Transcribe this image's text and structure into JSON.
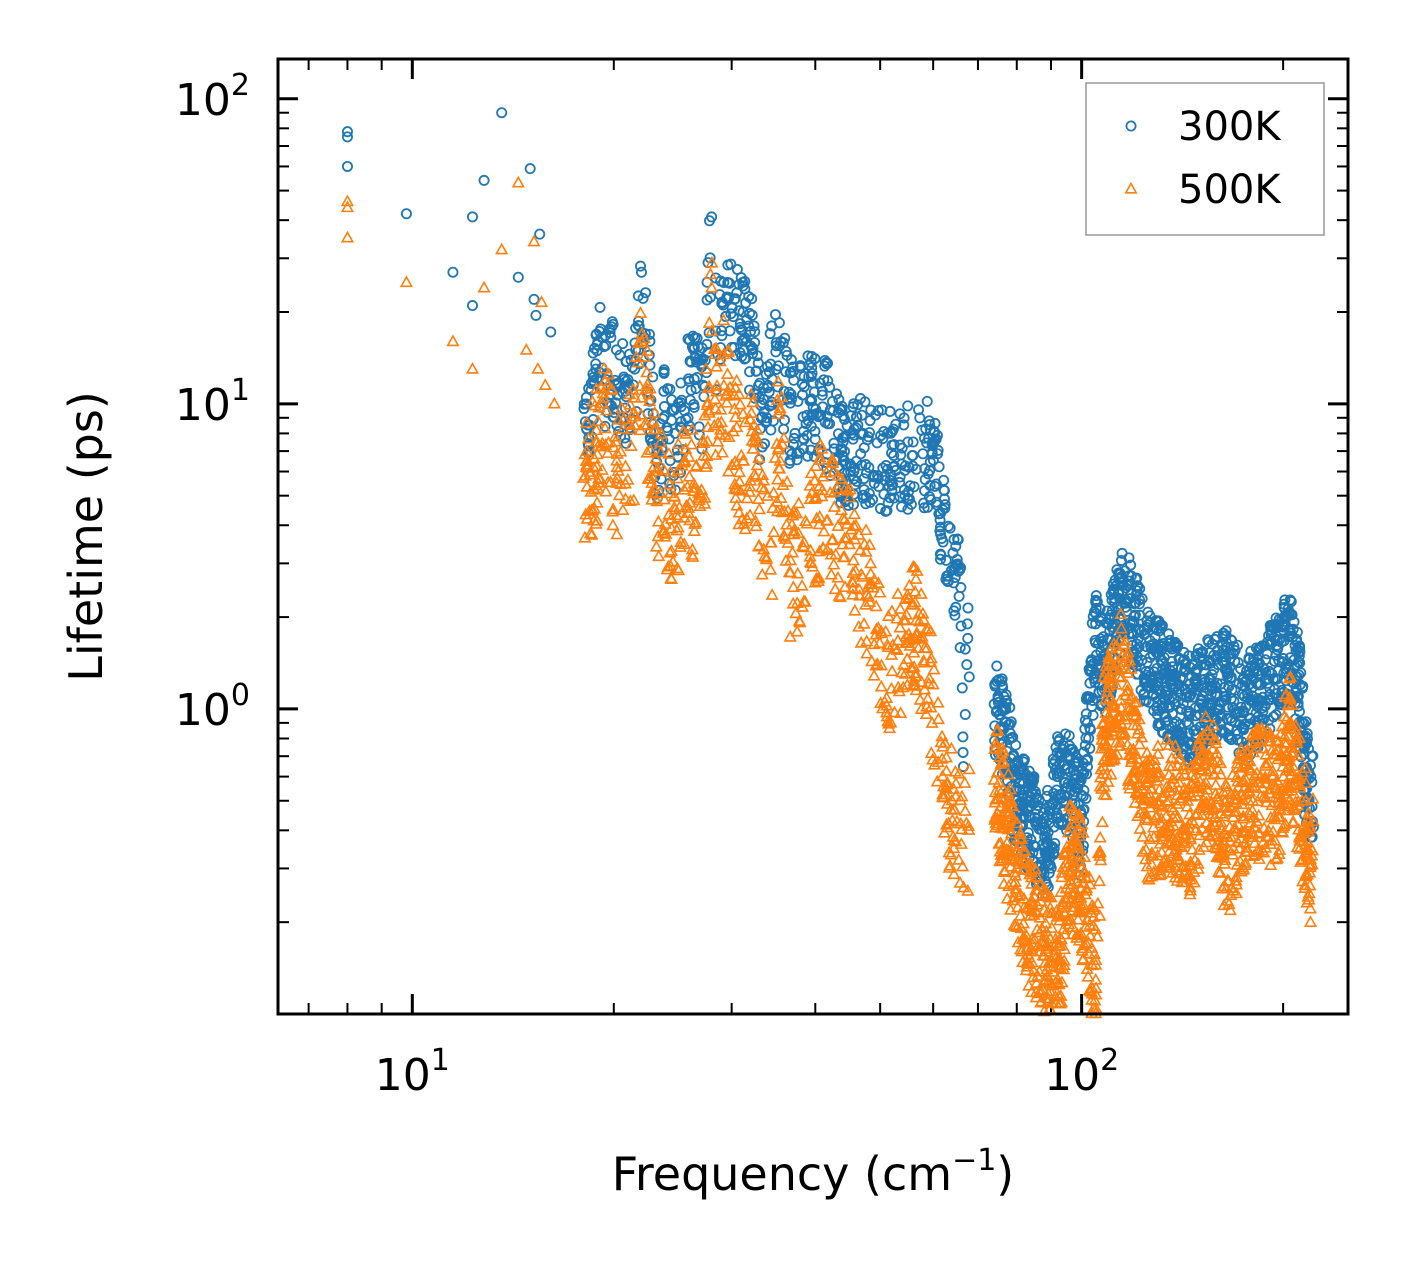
{
  "chart_data": {
    "type": "scatter",
    "xscale": "log",
    "yscale": "log",
    "xlim": [
      6.3,
      250
    ],
    "ylim": [
      0.1,
      135
    ],
    "xlabel": "Frequency (cm",
    "xlabel_sup": "−1",
    "xlabel_end": ")",
    "ylabel": "Lifetime (ps)",
    "x_ticks": [
      {
        "value": 10,
        "base": "10",
        "exp": "1"
      },
      {
        "value": 100,
        "base": "10",
        "exp": "2"
      }
    ],
    "y_ticks": [
      {
        "value": 1,
        "base": "10",
        "exp": "0"
      },
      {
        "value": 10,
        "base": "10",
        "exp": "1"
      },
      {
        "value": 100,
        "base": "10",
        "exp": "2"
      }
    ],
    "legend_position": "top-right",
    "series": [
      {
        "name": "300K",
        "marker": "circle",
        "color": "#1f77b4",
        "anchor_points": [
          [
            8,
            78
          ],
          [
            8,
            75
          ],
          [
            8,
            60
          ],
          [
            9.8,
            42
          ],
          [
            11.5,
            27
          ],
          [
            12.3,
            21
          ],
          [
            12.3,
            41
          ],
          [
            12.8,
            54
          ],
          [
            13.6,
            90
          ],
          [
            14.4,
            26
          ],
          [
            15.0,
            59
          ],
          [
            15.2,
            22
          ],
          [
            15.3,
            19.5
          ],
          [
            15.5,
            36
          ],
          [
            16.1,
            17.2
          ],
          [
            18.2,
            10.5
          ],
          [
            18.8,
            13
          ],
          [
            19.2,
            16.5
          ],
          [
            19.5,
            12
          ],
          [
            19.8,
            16.5
          ],
          [
            20.2,
            11.5
          ],
          [
            21.0,
            12
          ],
          [
            21.5,
            13
          ],
          [
            22.0,
            27
          ],
          [
            23.2,
            7
          ],
          [
            23.8,
            9.8
          ],
          [
            24.7,
            8
          ],
          [
            25.5,
            9.5
          ],
          [
            26.0,
            13.8
          ],
          [
            27.2,
            11.5
          ],
          [
            28.0,
            41
          ],
          [
            28.6,
            14.5
          ],
          [
            29.2,
            25
          ],
          [
            29.6,
            25
          ],
          [
            30.3,
            22
          ],
          [
            31.2,
            20
          ],
          [
            31.8,
            18
          ],
          [
            32.4,
            18
          ],
          [
            33.0,
            10.5
          ],
          [
            34.3,
            13.5
          ],
          [
            35.4,
            15.5
          ],
          [
            36.6,
            10.5
          ],
          [
            41.0,
            11
          ],
          [
            44.0,
            7.5
          ],
          [
            48.0,
            7.8
          ],
          [
            52.0,
            6.9
          ],
          [
            56.0,
            7.5
          ],
          [
            60.0,
            7.5
          ],
          [
            62.0,
            4.5
          ],
          [
            66.0,
            2.5
          ],
          [
            67.5,
            1.9
          ],
          [
            66.5,
            0.72
          ],
          [
            75.0,
            1.1
          ],
          [
            77.0,
            0.9
          ],
          [
            80.0,
            0.55
          ],
          [
            84.0,
            0.48
          ],
          [
            88.0,
            0.35
          ],
          [
            92.0,
            0.6
          ],
          [
            96.0,
            0.62
          ],
          [
            100.0,
            0.45
          ],
          [
            102.0,
            0.9
          ],
          [
            105.0,
            2.05
          ],
          [
            108.0,
            1.5
          ],
          [
            112.0,
            2.0
          ],
          [
            115.0,
            2.6
          ],
          [
            118.0,
            2.3
          ],
          [
            125.0,
            1.6
          ],
          [
            135.0,
            1.3
          ],
          [
            145.0,
            1.1
          ],
          [
            155.0,
            1.25
          ],
          [
            165.0,
            1.35
          ],
          [
            175.0,
            1.1
          ],
          [
            185.0,
            1.2
          ],
          [
            195.0,
            1.5
          ],
          [
            205.0,
            1.8
          ],
          [
            212.0,
            1.2
          ],
          [
            215.0,
            0.75
          ],
          [
            220.0,
            0.6
          ]
        ]
      },
      {
        "name": "500K",
        "marker": "triangle",
        "color": "#ff7f0e",
        "anchor_points": [
          [
            8,
            46
          ],
          [
            8,
            44
          ],
          [
            8,
            35
          ],
          [
            9.8,
            25
          ],
          [
            11.5,
            16
          ],
          [
            12.3,
            13
          ],
          [
            12.8,
            24
          ],
          [
            13.6,
            32
          ],
          [
            14.4,
            53
          ],
          [
            14.8,
            15
          ],
          [
            15.2,
            34
          ],
          [
            15.4,
            13
          ],
          [
            15.6,
            21.5
          ],
          [
            15.8,
            11.5
          ],
          [
            16.3,
            10
          ],
          [
            18.2,
            6.2
          ],
          [
            18.8,
            7.5
          ],
          [
            19.5,
            9.5
          ],
          [
            20.2,
            6.5
          ],
          [
            21.5,
            8.5
          ],
          [
            22.0,
            16
          ],
          [
            23.2,
            6
          ],
          [
            24.7,
            4.5
          ],
          [
            25.5,
            6.5
          ],
          [
            27.0,
            5
          ],
          [
            28.0,
            24
          ],
          [
            28.6,
            7.5
          ],
          [
            29.2,
            14.5
          ],
          [
            29.6,
            11
          ],
          [
            31.2,
            6.5
          ],
          [
            32.4,
            8.5
          ],
          [
            33.0,
            4.5
          ],
          [
            34.3,
            3.5
          ],
          [
            35.4,
            9.5
          ],
          [
            36.6,
            2.8
          ],
          [
            41.0,
            5.2
          ],
          [
            44.0,
            4.2
          ],
          [
            48.0,
            2.5
          ],
          [
            52.0,
            1.5
          ],
          [
            56.0,
            2.2
          ],
          [
            60.0,
            1.2
          ],
          [
            62.0,
            0.75
          ],
          [
            64.0,
            0.5
          ],
          [
            66.0,
            0.42
          ],
          [
            75.0,
            0.62
          ],
          [
            80.0,
            0.3
          ],
          [
            84.0,
            0.22
          ],
          [
            88.0,
            0.18
          ],
          [
            92.0,
            0.15
          ],
          [
            96.0,
            0.35
          ],
          [
            100.0,
            0.3
          ],
          [
            103.0,
            0.18
          ],
          [
            105.0,
            0.15
          ],
          [
            108.0,
            0.9
          ],
          [
            115.0,
            1.5
          ],
          [
            118.0,
            1.0
          ],
          [
            125.0,
            0.5
          ],
          [
            135.0,
            0.55
          ],
          [
            145.0,
            0.45
          ],
          [
            155.0,
            0.7
          ],
          [
            165.0,
            0.38
          ],
          [
            175.0,
            0.55
          ],
          [
            185.0,
            0.6
          ],
          [
            195.0,
            0.55
          ],
          [
            205.0,
            0.9
          ],
          [
            212.0,
            0.55
          ],
          [
            220.0,
            0.35
          ]
        ]
      }
    ]
  }
}
